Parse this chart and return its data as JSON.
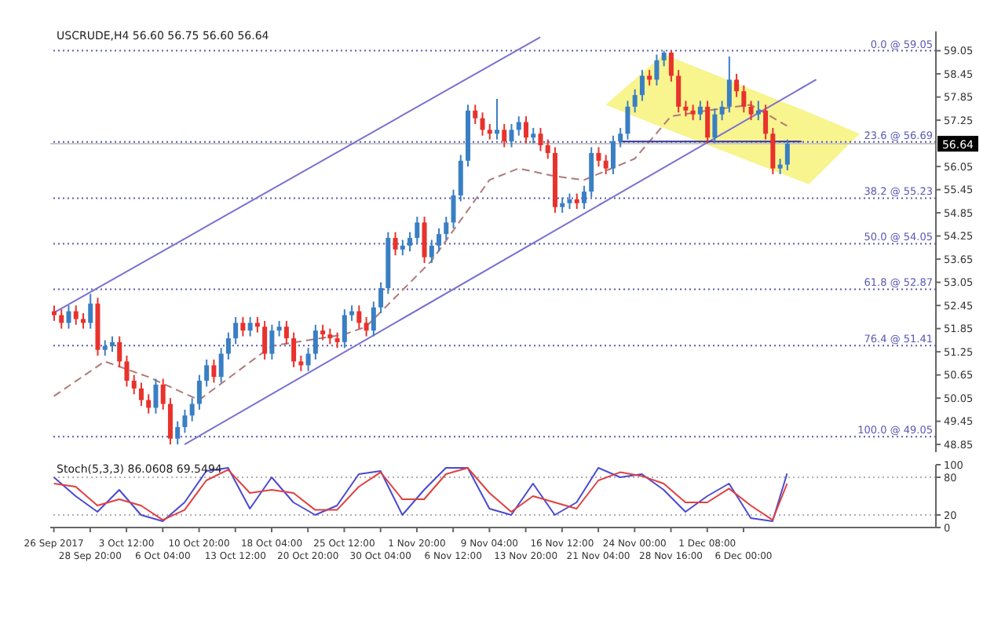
{
  "chart_data": [
    {
      "type": "candlestick",
      "title": "USCRUDE,H4 56.60 56.75 56.60 56.64",
      "categories": [
        null,
        null,
        null,
        null,
        null,
        null,
        null,
        null,
        null,
        null,
        null,
        null,
        null,
        null,
        null,
        null,
        null,
        null,
        null,
        null,
        null,
        null,
        null,
        null,
        null,
        null,
        null,
        null,
        null,
        null,
        null,
        null,
        null,
        null,
        null,
        null,
        null,
        null,
        null,
        null,
        null,
        null,
        null,
        null,
        null,
        null,
        null,
        null,
        null,
        null,
        null,
        null,
        null,
        null,
        null,
        null,
        null,
        null,
        null,
        null,
        null,
        null,
        null,
        null,
        null,
        null,
        null,
        null,
        null,
        null,
        null,
        null,
        null,
        null,
        null,
        null,
        null,
        null,
        null,
        null,
        null,
        null,
        null,
        null,
        null,
        null,
        null,
        null,
        null,
        null,
        null,
        null,
        null,
        null,
        null,
        null,
        null,
        null,
        null,
        null,
        null,
        null,
        null,
        null,
        null,
        null,
        null,
        null,
        null,
        null,
        null,
        null,
        null,
        null,
        null,
        null,
        null,
        null,
        null,
        null,
        null,
        null
      ],
      "ohlc": [
        [
          52.3,
          52.45,
          52.05,
          52.2
        ],
        [
          52.2,
          52.35,
          51.85,
          52.0
        ],
        [
          52.0,
          52.45,
          51.85,
          52.3
        ],
        [
          52.3,
          52.45,
          51.95,
          52.1
        ],
        [
          52.1,
          52.25,
          51.85,
          52.0
        ],
        [
          52.0,
          52.75,
          51.85,
          52.5
        ],
        [
          52.5,
          52.65,
          51.15,
          51.3
        ],
        [
          51.3,
          51.55,
          51.15,
          51.4
        ],
        [
          51.4,
          51.65,
          51.25,
          51.5
        ],
        [
          51.5,
          51.65,
          50.85,
          51.0
        ],
        [
          51.0,
          51.15,
          50.35,
          50.5
        ],
        [
          50.5,
          50.65,
          50.15,
          50.3
        ],
        [
          50.3,
          50.45,
          49.85,
          50.0
        ],
        [
          50.0,
          50.15,
          49.65,
          49.8
        ],
        [
          49.8,
          50.55,
          49.65,
          50.4
        ],
        [
          50.4,
          50.55,
          49.75,
          49.9
        ],
        [
          49.9,
          50.05,
          48.85,
          49.0
        ],
        [
          49.0,
          49.45,
          48.85,
          49.3
        ],
        [
          49.3,
          49.75,
          49.15,
          49.6
        ],
        [
          49.6,
          50.05,
          49.45,
          49.9
        ],
        [
          49.9,
          50.65,
          49.75,
          50.5
        ],
        [
          50.5,
          51.05,
          50.35,
          50.9
        ],
        [
          50.9,
          51.05,
          50.45,
          50.6
        ],
        [
          50.6,
          51.35,
          50.45,
          51.2
        ],
        [
          51.2,
          51.75,
          51.05,
          51.6
        ],
        [
          51.6,
          52.15,
          51.45,
          52.0
        ],
        [
          52.0,
          52.15,
          51.65,
          51.8
        ],
        [
          51.8,
          52.15,
          51.65,
          52.0
        ],
        [
          52.0,
          52.15,
          51.75,
          51.9
        ],
        [
          51.9,
          52.05,
          51.05,
          51.2
        ],
        [
          51.2,
          51.95,
          51.05,
          51.8
        ],
        [
          51.8,
          52.05,
          51.65,
          51.9
        ],
        [
          51.9,
          52.05,
          51.45,
          51.6
        ],
        [
          51.6,
          51.75,
          50.85,
          51.0
        ],
        [
          51.0,
          51.15,
          50.75,
          50.9
        ],
        [
          50.9,
          51.35,
          50.75,
          51.2
        ],
        [
          51.2,
          51.95,
          51.05,
          51.8
        ],
        [
          51.8,
          51.95,
          51.55,
          51.7
        ],
        [
          51.7,
          51.85,
          51.45,
          51.6
        ],
        [
          51.6,
          51.75,
          51.35,
          51.5
        ],
        [
          51.5,
          52.35,
          51.35,
          52.2
        ],
        [
          52.2,
          52.45,
          52.05,
          52.3
        ],
        [
          52.3,
          52.45,
          51.85,
          52.0
        ],
        [
          52.0,
          52.15,
          51.65,
          51.8
        ],
        [
          51.8,
          52.55,
          51.65,
          52.4
        ],
        [
          52.4,
          53.05,
          52.25,
          52.9
        ],
        [
          52.9,
          54.35,
          52.75,
          54.2
        ],
        [
          54.2,
          54.35,
          53.75,
          53.9
        ],
        [
          53.9,
          54.15,
          53.75,
          54.0
        ],
        [
          54.0,
          54.35,
          53.85,
          54.2
        ],
        [
          54.2,
          54.75,
          54.05,
          54.6
        ],
        [
          54.6,
          54.75,
          53.55,
          53.7
        ],
        [
          53.7,
          54.15,
          53.55,
          54.0
        ],
        [
          54.0,
          54.45,
          53.85,
          54.3
        ],
        [
          54.3,
          54.75,
          54.15,
          54.6
        ],
        [
          54.6,
          55.45,
          54.45,
          55.3
        ],
        [
          55.3,
          56.35,
          55.15,
          56.2
        ],
        [
          56.2,
          57.65,
          56.05,
          57.5
        ],
        [
          57.5,
          57.65,
          57.15,
          57.3
        ],
        [
          57.3,
          57.45,
          56.85,
          57.0
        ],
        [
          57.0,
          57.15,
          56.75,
          56.9
        ],
        [
          56.9,
          57.8,
          56.75,
          57.0
        ],
        [
          57.0,
          57.15,
          56.55,
          56.7
        ],
        [
          56.7,
          57.15,
          56.55,
          57.0
        ],
        [
          57.0,
          57.35,
          56.85,
          57.2
        ],
        [
          57.2,
          57.35,
          56.65,
          56.8
        ],
        [
          56.8,
          57.05,
          56.65,
          56.9
        ],
        [
          56.9,
          57.05,
          56.45,
          56.6
        ],
        [
          56.6,
          56.75,
          56.25,
          56.4
        ],
        [
          56.4,
          56.55,
          54.85,
          55.0
        ],
        [
          55.0,
          55.25,
          54.85,
          55.1
        ],
        [
          55.1,
          55.35,
          54.95,
          55.2
        ],
        [
          55.2,
          55.35,
          54.95,
          55.1
        ],
        [
          55.1,
          55.55,
          54.95,
          55.4
        ],
        [
          55.4,
          56.55,
          55.25,
          56.4
        ],
        [
          56.4,
          56.55,
          56.05,
          56.2
        ],
        [
          56.2,
          56.35,
          55.85,
          56.0
        ],
        [
          56.0,
          56.85,
          55.85,
          56.7
        ],
        [
          56.7,
          57.05,
          56.55,
          56.9
        ],
        [
          56.9,
          57.75,
          56.75,
          57.6
        ],
        [
          57.6,
          58.05,
          57.45,
          57.9
        ],
        [
          57.9,
          58.55,
          57.75,
          58.4
        ],
        [
          58.4,
          58.55,
          58.15,
          58.3
        ],
        [
          58.3,
          58.95,
          58.15,
          58.8
        ],
        [
          58.8,
          59.05,
          58.65,
          59.0
        ],
        [
          59.0,
          59.05,
          58.25,
          58.4
        ],
        [
          58.4,
          58.55,
          57.45,
          57.6
        ],
        [
          57.6,
          57.75,
          57.35,
          57.5
        ],
        [
          57.5,
          57.65,
          57.25,
          57.4
        ],
        [
          57.4,
          57.75,
          57.25,
          57.6
        ],
        [
          57.6,
          57.75,
          56.65,
          56.8
        ],
        [
          56.8,
          57.55,
          56.65,
          57.4
        ],
        [
          57.4,
          57.75,
          57.25,
          57.6
        ],
        [
          57.6,
          58.9,
          57.45,
          58.3
        ],
        [
          58.3,
          58.45,
          57.85,
          58.0
        ],
        [
          58.0,
          58.15,
          57.45,
          57.6
        ],
        [
          57.6,
          57.75,
          57.25,
          57.4
        ],
        [
          57.4,
          57.75,
          57.25,
          57.5
        ],
        [
          57.5,
          57.65,
          56.75,
          56.9
        ],
        [
          56.9,
          57.05,
          55.85,
          56.0
        ],
        [
          56.0,
          56.25,
          55.85,
          56.1
        ],
        [
          56.1,
          56.75,
          55.95,
          56.64
        ],
        null,
        null,
        null,
        null,
        null,
        null,
        null,
        null,
        null,
        null,
        null,
        null,
        null,
        null,
        null,
        null,
        null,
        null,
        null,
        null
      ],
      "colors": [
        "#e8322b",
        "#e8322b",
        "#3a7fc4",
        "#e8322b",
        "#e8322b",
        "#3a7fc4",
        "#e8322b",
        "#3a7fc4",
        "#3a7fc4",
        "#e8322b",
        "#e8322b",
        "#e8322b",
        "#e8322b",
        "#e8322b",
        "#3a7fc4",
        "#e8322b",
        "#e8322b",
        "#3a7fc4",
        "#3a7fc4",
        "#3a7fc4",
        "#3a7fc4",
        "#3a7fc4",
        "#e8322b",
        "#3a7fc4",
        "#3a7fc4",
        "#3a7fc4",
        "#e8322b",
        "#3a7fc4",
        "#e8322b",
        "#e8322b",
        "#3a7fc4",
        "#3a7fc4",
        "#e8322b",
        "#e8322b",
        "#e8322b",
        "#3a7fc4",
        "#3a7fc4",
        "#e8322b",
        "#e8322b",
        "#e8322b",
        "#3a7fc4",
        "#3a7fc4",
        "#e8322b",
        "#e8322b",
        "#3a7fc4",
        "#3a7fc4",
        "#3a7fc4",
        "#e8322b",
        "#3a7fc4",
        "#3a7fc4",
        "#3a7fc4",
        "#e8322b",
        "#3a7fc4",
        "#3a7fc4",
        "#3a7fc4",
        "#3a7fc4",
        "#3a7fc4",
        "#3a7fc4",
        "#e8322b",
        "#e8322b",
        "#e8322b",
        "#3a7fc4",
        "#e8322b",
        "#3a7fc4",
        "#3a7fc4",
        "#e8322b",
        "#3a7fc4",
        "#e8322b",
        "#e8322b",
        "#e8322b",
        "#3a7fc4",
        "#3a7fc4",
        "#e8322b",
        "#3a7fc4",
        "#3a7fc4",
        "#e8322b",
        "#e8322b",
        "#3a7fc4",
        "#3a7fc4",
        "#3a7fc4",
        "#3a7fc4",
        "#3a7fc4",
        "#e8322b",
        "#3a7fc4",
        "#3a7fc4",
        "#e8322b",
        "#e8322b",
        "#e8322b",
        "#e8322b",
        "#3a7fc4",
        "#e8322b",
        "#3a7fc4",
        "#3a7fc4",
        "#3a7fc4",
        "#e8322b",
        "#e8322b",
        "#e8322b",
        "#3a7fc4",
        "#e8322b",
        "#e8322b",
        "#3a7fc4",
        "#3a7fc4",
        null,
        null,
        null,
        null,
        null,
        null,
        null,
        null,
        null,
        null,
        null,
        null,
        null,
        null,
        null,
        null,
        null,
        null,
        null,
        null
      ],
      "series": [
        {
          "type": "area",
          "color": "#f7f27a",
          "values": [
            null,
            null,
            null,
            null,
            null,
            null,
            null,
            null,
            null,
            null,
            null,
            null,
            null,
            null,
            null,
            null,
            null,
            null,
            null,
            null,
            null,
            null,
            null,
            null,
            null,
            null,
            null,
            null,
            null,
            null,
            null,
            null,
            null,
            null,
            null,
            null,
            null,
            null,
            null,
            null,
            null,
            null,
            null,
            null,
            null,
            null,
            null,
            null,
            null,
            null,
            null,
            null,
            null,
            null,
            null,
            null,
            null,
            null,
            null,
            null,
            null,
            null,
            null,
            null,
            null,
            null,
            null,
            null,
            null,
            null,
            null,
            null,
            null,
            null,
            null,
            null,
            null,
            null,
            null,
            null,
            null,
            null,
            null,
            null,
            null,
            null,
            null,
            null,
            null,
            null,
            null,
            null,
            null,
            null,
            null,
            null,
            null,
            null,
            null,
            null,
            null,
            null,
            null,
            null,
            null,
            null,
            null,
            null,
            null,
            null,
            null,
            null,
            null,
            null,
            null,
            null,
            null,
            null,
            null,
            null,
            null,
            null
          ],
          "lower": [
            null,
            null,
            null,
            null,
            null,
            null,
            null,
            null,
            null,
            null,
            null,
            null,
            null,
            null,
            null,
            null,
            null,
            null,
            null,
            null,
            null,
            null,
            null,
            null,
            null,
            null,
            null,
            null,
            null,
            null,
            null,
            null,
            null,
            null,
            null,
            null,
            null,
            null,
            null,
            null,
            null,
            null,
            null,
            null,
            null,
            null,
            null,
            null,
            null,
            null,
            null,
            null,
            null,
            null,
            null,
            null,
            null,
            null,
            null,
            null,
            null,
            null,
            null,
            null,
            null,
            null,
            null,
            null,
            null,
            null,
            null,
            null,
            null,
            null,
            null,
            null,
            57.65,
            null,
            null,
            null,
            null,
            null,
            null,
            null,
            57.05,
            null,
            null,
            null,
            null,
            null,
            null,
            null,
            null,
            null,
            null,
            null,
            null,
            null,
            null,
            null,
            null,
            null,
            null,
            null,
            55.59,
            null,
            null,
            null,
            null,
            null,
            null,
            56.9,
            null,
            null,
            null,
            null,
            null,
            null,
            null,
            null,
            null,
            null
          ],
          "upper": [
            null,
            null,
            null,
            null,
            null,
            null,
            null,
            null,
            null,
            null,
            null,
            null,
            null,
            null,
            null,
            null,
            null,
            null,
            null,
            null,
            null,
            null,
            null,
            null,
            null,
            null,
            null,
            null,
            null,
            null,
            null,
            null,
            null,
            null,
            null,
            null,
            null,
            null,
            null,
            null,
            null,
            null,
            null,
            null,
            null,
            null,
            null,
            null,
            null,
            null,
            null,
            null,
            null,
            null,
            null,
            null,
            null,
            null,
            null,
            null,
            null,
            null,
            null,
            null,
            null,
            null,
            null,
            null,
            null,
            null,
            null,
            null,
            null,
            null,
            null,
            null,
            57.65,
            null,
            null,
            null,
            null,
            null,
            null,
            null,
            58.96,
            null,
            null,
            null,
            null,
            null,
            null,
            null,
            null,
            null,
            null,
            null,
            null,
            null,
            null,
            null,
            null,
            null,
            null,
            null,
            57.45,
            null,
            null,
            null,
            null,
            null,
            null,
            56.9,
            null,
            null,
            null,
            null,
            null,
            null,
            null,
            null,
            null,
            null
          ]
        },
        {
          "type": "line",
          "color": "#b07a7a",
          "line_style": "dashed",
          "values": [
            50.1,
            null,
            null,
            null,
            null,
            null,
            null,
            51.0,
            null,
            null,
            null,
            null,
            null,
            50.6,
            null,
            null,
            null,
            null,
            null,
            null,
            50.0,
            null,
            null,
            null,
            null,
            null,
            null,
            null,
            null,
            null,
            51.4,
            null,
            null,
            null,
            null,
            null,
            null,
            null,
            null,
            null,
            51.7,
            null,
            null,
            51.9,
            null,
            null,
            null,
            null,
            null,
            null,
            null,
            null,
            53.6,
            null,
            null,
            null,
            null,
            null,
            null,
            null,
            55.7,
            null,
            null,
            null,
            56.0,
            null,
            null,
            null,
            null,
            55.8,
            null,
            null,
            null,
            55.7,
            null,
            null,
            null,
            null,
            null,
            null,
            56.25,
            null,
            null,
            null,
            null,
            57.35,
            null,
            null,
            null,
            null,
            57.5,
            null,
            null,
            null,
            null,
            null,
            57.65,
            null,
            null,
            null,
            null,
            57.1,
            null,
            null,
            null,
            null,
            null,
            null,
            null,
            null,
            null,
            null,
            null,
            null,
            null,
            null,
            null,
            null,
            null,
            null,
            null,
            null
          ]
        },
        {
          "type": "line",
          "color": "#7a70d0",
          "line_style": "solid",
          "values": [
            52.26,
            null,
            null,
            null,
            null,
            null,
            null,
            null,
            null,
            null,
            null,
            null,
            null,
            null,
            null,
            null,
            null,
            null,
            null,
            null,
            null,
            null,
            null,
            null,
            null,
            null,
            null,
            null,
            null,
            null,
            null,
            null,
            null,
            null,
            null,
            null,
            null,
            null,
            null,
            null,
            null,
            null,
            null,
            null,
            null,
            null,
            null,
            null,
            null,
            null,
            null,
            null,
            null,
            null,
            null,
            null,
            null,
            null,
            null,
            null,
            null,
            null,
            null,
            null,
            null,
            null,
            null,
            59.4,
            null,
            null,
            null,
            null,
            null,
            null,
            null,
            null,
            null,
            null,
            null,
            null,
            null,
            null,
            null,
            null,
            null,
            null,
            null,
            null,
            null,
            null,
            null,
            null,
            null,
            null,
            null,
            null,
            null,
            null,
            null,
            null,
            null,
            null,
            null,
            null,
            null,
            null,
            null,
            null,
            null,
            null,
            null,
            null,
            null,
            null,
            null,
            null,
            null,
            null,
            null,
            null,
            null,
            null
          ]
        },
        {
          "type": "line",
          "color": "#7a70d0",
          "line_style": "solid",
          "values": [
            null,
            null,
            null,
            null,
            null,
            null,
            null,
            null,
            null,
            null,
            null,
            null,
            null,
            null,
            null,
            null,
            null,
            null,
            48.85,
            null,
            null,
            null,
            null,
            null,
            null,
            null,
            null,
            null,
            null,
            null,
            null,
            null,
            null,
            null,
            null,
            null,
            null,
            null,
            null,
            null,
            null,
            null,
            null,
            null,
            null,
            null,
            null,
            null,
            null,
            null,
            null,
            null,
            null,
            null,
            null,
            null,
            null,
            null,
            null,
            null,
            null,
            null,
            null,
            null,
            null,
            null,
            null,
            null,
            null,
            null,
            null,
            null,
            null,
            null,
            null,
            null,
            null,
            null,
            null,
            null,
            null,
            null,
            null,
            null,
            null,
            null,
            null,
            null,
            null,
            null,
            null,
            null,
            null,
            null,
            null,
            null,
            null,
            null,
            null,
            null,
            null,
            null,
            null,
            null,
            null,
            58.3,
            null,
            null,
            null,
            null,
            null,
            null,
            null,
            null,
            null,
            null,
            null,
            null,
            null,
            null,
            null,
            null
          ]
        },
        {
          "type": "line",
          "color": "#3232a0",
          "line_style": "solid",
          "values": [
            null,
            null,
            null,
            null,
            null,
            null,
            null,
            null,
            null,
            null,
            null,
            null,
            null,
            null,
            null,
            null,
            null,
            null,
            null,
            null,
            null,
            null,
            null,
            null,
            null,
            null,
            null,
            null,
            null,
            null,
            null,
            null,
            null,
            null,
            null,
            null,
            null,
            null,
            null,
            null,
            null,
            null,
            null,
            null,
            null,
            null,
            null,
            null,
            null,
            null,
            null,
            null,
            null,
            null,
            null,
            null,
            null,
            null,
            null,
            null,
            null,
            null,
            null,
            null,
            null,
            null,
            null,
            null,
            null,
            null,
            null,
            null,
            null,
            null,
            null,
            null,
            null,
            null,
            56.7,
            null,
            null,
            null,
            null,
            null,
            null,
            null,
            null,
            null,
            null,
            null,
            null,
            null,
            null,
            null,
            null,
            null,
            null,
            null,
            null,
            null,
            null,
            null,
            null,
            56.7,
            null,
            null,
            null,
            null,
            null,
            null,
            null,
            null,
            null,
            null,
            null,
            null,
            null,
            null,
            null,
            null,
            null,
            null
          ]
        }
      ],
      "ylim": [
        48.65,
        59.55
      ],
      "yticks": [
        48.85,
        49.45,
        50.05,
        50.65,
        51.25,
        51.85,
        52.45,
        53.05,
        53.65,
        54.25,
        54.85,
        55.45,
        56.05,
        57.25,
        57.85,
        58.45,
        59.05
      ],
      "ref_lines": [
        {
          "axis": "y",
          "value": 59.05,
          "label": "0.0 @ 59.05",
          "color": "#5a5ab4",
          "line_style": "dotted"
        },
        {
          "axis": "y",
          "value": 56.69,
          "label": "23.6 @ 56.69",
          "color": "#5a5ab4",
          "line_style": "dotted"
        },
        {
          "axis": "y",
          "value": 55.23,
          "label": "38.2 @ 55.23",
          "color": "#5a5ab4",
          "line_style": "dotted"
        },
        {
          "axis": "y",
          "value": 54.05,
          "label": "50.0 @ 54.05",
          "color": "#5a5ab4",
          "line_style": "dotted"
        },
        {
          "axis": "y",
          "value": 52.87,
          "label": "61.8 @ 52.87",
          "color": "#5a5ab4",
          "line_style": "dotted"
        },
        {
          "axis": "y",
          "value": 51.41,
          "label": "76.4 @ 51.41",
          "color": "#5a5ab4",
          "line_style": "dotted"
        },
        {
          "axis": "y",
          "value": 49.05,
          "label": "100.0 @ 49.05",
          "color": "#5a5ab4",
          "line_style": "dotted"
        },
        {
          "axis": "y",
          "value": 56.64,
          "label": "56.64",
          "color": "#c8c8c8",
          "line_style": "solid"
        }
      ],
      "tick_labels": "y"
    },
    {
      "type": "line",
      "title": "Stoch(5,3,3) 86.0608 69.5494",
      "categories": [
        "26 Sep 2017",
        null,
        null,
        null,
        null,
        "28 Sep 20:00",
        null,
        null,
        null,
        null,
        "3 Oct 12:00",
        null,
        null,
        null,
        null,
        "6 Oct 04:00",
        null,
        null,
        null,
        null,
        "10 Oct 20:00",
        null,
        null,
        null,
        null,
        "13 Oct 12:00",
        null,
        null,
        null,
        null,
        "18 Oct 04:00",
        null,
        null,
        null,
        null,
        "20 Oct 20:00",
        null,
        null,
        null,
        null,
        "25 Oct 12:00",
        null,
        null,
        null,
        null,
        "30 Oct 04:00",
        null,
        null,
        null,
        null,
        "1 Nov 20:00",
        null,
        null,
        null,
        null,
        "6 Nov 12:00",
        null,
        null,
        null,
        null,
        "9 Nov 04:00",
        null,
        null,
        null,
        null,
        "13 Nov 20:00",
        null,
        null,
        null,
        null,
        "16 Nov 12:00",
        null,
        null,
        null,
        null,
        "21 Nov 04:00",
        null,
        null,
        null,
        null,
        "24 Nov 00:00",
        null,
        null,
        null,
        null,
        "28 Nov 16:00",
        null,
        null,
        null,
        null,
        "1 Dec 08:00",
        null,
        null,
        null,
        null,
        "6 Dec 00:00",
        null,
        null,
        null,
        null,
        null,
        null,
        null,
        null,
        null,
        null,
        null,
        null,
        null,
        null,
        null,
        null,
        null,
        null,
        null,
        null,
        null,
        null,
        null,
        null,
        null,
        null
      ],
      "series": [
        {
          "color": "#4a4ad0",
          "values": [
            80,
            null,
            null,
            50,
            null,
            null,
            25,
            null,
            null,
            60,
            null,
            null,
            20,
            null,
            null,
            10,
            null,
            null,
            40,
            null,
            null,
            90,
            null,
            null,
            95,
            null,
            null,
            30,
            null,
            null,
            80,
            null,
            null,
            40,
            null,
            null,
            20,
            null,
            null,
            35,
            null,
            null,
            85,
            null,
            null,
            90,
            null,
            null,
            20,
            null,
            null,
            60,
            null,
            null,
            95,
            null,
            null,
            95,
            null,
            null,
            30,
            null,
            null,
            20,
            null,
            null,
            70,
            null,
            null,
            20,
            null,
            null,
            40,
            null,
            null,
            95,
            null,
            null,
            80,
            null,
            null,
            85,
            null,
            null,
            60,
            null,
            null,
            25,
            null,
            null,
            50,
            null,
            null,
            70,
            null,
            null,
            15,
            null,
            null,
            10,
            null,
            86,
            null,
            null,
            null,
            null,
            null,
            null,
            null,
            null,
            null,
            null,
            null,
            null,
            null,
            null,
            null,
            null,
            null,
            null,
            null,
            null
          ]
        },
        {
          "color": "#e04040",
          "values": [
            70,
            null,
            null,
            65,
            null,
            null,
            35,
            null,
            null,
            45,
            null,
            null,
            35,
            null,
            null,
            12,
            null,
            null,
            28,
            null,
            null,
            75,
            null,
            null,
            92,
            null,
            null,
            55,
            null,
            null,
            60,
            null,
            null,
            55,
            null,
            null,
            28,
            null,
            null,
            28,
            null,
            null,
            65,
            null,
            null,
            88,
            null,
            null,
            45,
            null,
            null,
            45,
            null,
            null,
            85,
            null,
            null,
            95,
            null,
            null,
            55,
            null,
            null,
            25,
            null,
            null,
            50,
            null,
            null,
            40,
            null,
            null,
            30,
            null,
            null,
            75,
            null,
            null,
            88,
            null,
            null,
            82,
            null,
            null,
            70,
            null,
            null,
            40,
            null,
            null,
            40,
            null,
            null,
            62,
            null,
            null,
            35,
            null,
            null,
            12,
            null,
            70,
            null,
            null,
            null,
            null,
            null,
            null,
            null,
            null,
            null,
            null,
            null,
            null,
            null,
            null,
            null,
            null,
            null,
            null,
            null,
            null
          ]
        }
      ],
      "ylim": [
        0,
        100
      ],
      "yticks": [
        0,
        20,
        80,
        100
      ],
      "ref_lines": [
        {
          "axis": "y",
          "value": 80,
          "color": "#b0b0b0",
          "line_style": "dotted"
        },
        {
          "axis": "y",
          "value": 20,
          "color": "#b0b0b0",
          "line_style": "dotted"
        }
      ]
    }
  ]
}
